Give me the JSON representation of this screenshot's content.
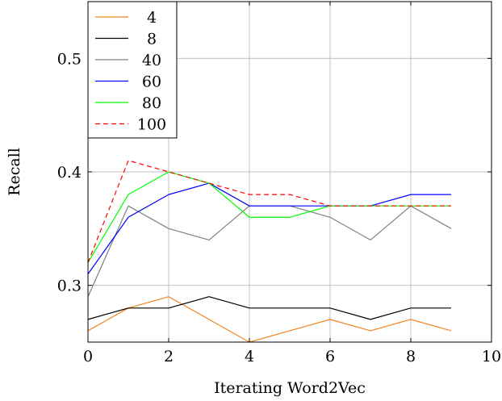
{
  "chart_data": {
    "type": "line",
    "title": "",
    "xlabel": "Iterating Word2Vec",
    "ylabel": "Recall",
    "xlim": [
      0,
      10
    ],
    "ylim": [
      0.25,
      0.55
    ],
    "xticks": [
      0,
      2,
      4,
      6,
      8,
      10
    ],
    "xtick_labels": [
      "0",
      "2",
      "4",
      "6",
      "8",
      "10"
    ],
    "yticks": [
      0.3,
      0.4,
      0.5
    ],
    "ytick_labels": [
      "0.3",
      "0.4",
      "0.5"
    ],
    "grid": true,
    "legend_position": "top-left",
    "x": [
      0,
      1,
      2,
      3,
      4,
      5,
      6,
      7,
      8,
      9
    ],
    "series": [
      {
        "name": "4",
        "color": "#f28522",
        "dash": "solid",
        "values": [
          0.26,
          0.28,
          0.29,
          0.27,
          0.25,
          0.26,
          0.27,
          0.26,
          0.27,
          0.26
        ]
      },
      {
        "name": "8",
        "color": "#000000",
        "dash": "solid",
        "values": [
          0.27,
          0.28,
          0.28,
          0.29,
          0.28,
          0.28,
          0.28,
          0.27,
          0.28,
          0.28
        ]
      },
      {
        "name": "40",
        "color": "#808080",
        "dash": "solid",
        "values": [
          0.29,
          0.37,
          0.35,
          0.34,
          0.37,
          0.37,
          0.36,
          0.34,
          0.37,
          0.35
        ]
      },
      {
        "name": "60",
        "color": "#0000ff",
        "dash": "solid",
        "values": [
          0.31,
          0.36,
          0.38,
          0.39,
          0.37,
          0.37,
          0.37,
          0.37,
          0.38,
          0.38
        ]
      },
      {
        "name": "80",
        "color": "#00ff00",
        "dash": "solid",
        "values": [
          0.32,
          0.38,
          0.4,
          0.39,
          0.36,
          0.36,
          0.37,
          0.37,
          0.37,
          0.37
        ]
      },
      {
        "name": "100",
        "color": "#ff0000",
        "dash": "dashed",
        "values": [
          0.32,
          0.41,
          0.4,
          0.39,
          0.38,
          0.38,
          0.37,
          0.37,
          0.37,
          0.37
        ]
      }
    ]
  }
}
